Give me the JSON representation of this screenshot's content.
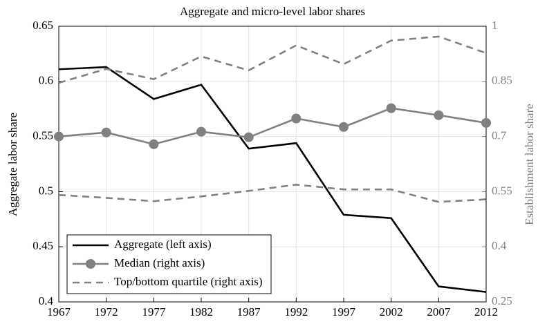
{
  "chart_data": {
    "type": "line",
    "title": "Aggregate and micro-level labor shares",
    "y_label": "Aggregate labor share",
    "y2_label": "Establishment labor share",
    "x": [
      1967,
      1972,
      1977,
      1982,
      1987,
      1992,
      1997,
      2002,
      2007,
      2012
    ],
    "xlim": [
      1967,
      2012
    ],
    "xticks": [
      1967,
      1972,
      1977,
      1982,
      1987,
      1992,
      1997,
      2002,
      2007,
      2012
    ],
    "ylim": [
      0.4,
      0.65
    ],
    "yticks": [
      0.4,
      0.45,
      0.5,
      0.55,
      0.6,
      0.65
    ],
    "y2lim": [
      0.25,
      1
    ],
    "y2ticks": [
      0.25,
      0.4,
      0.55,
      0.7,
      0.85,
      1
    ],
    "grid": true,
    "legend": "lower left",
    "series": [
      {
        "name": "Aggregate (left axis)",
        "color": "#000000",
        "style": "solid",
        "marker": "none",
        "values": [
          0.611,
          0.613,
          0.584,
          0.597,
          0.539,
          0.544,
          0.479,
          0.476,
          0.414,
          0.409
        ]
      },
      {
        "name": "Median (right axis)",
        "color": "#808080",
        "style": "solid",
        "marker": "circle",
        "axis": "y2",
        "values": [
          0.7,
          0.711,
          0.679,
          0.713,
          0.698,
          0.749,
          0.726,
          0.777,
          0.758,
          0.737
        ]
      },
      {
        "name": "Top/bottom quartile (right axis)",
        "color": "#808080",
        "style": "dashed",
        "marker": "none",
        "axis": "y2",
        "values": [
          0.846,
          0.884,
          0.856,
          0.918,
          0.88,
          0.948,
          0.897,
          0.961,
          0.972,
          0.927
        ],
        "bottom_values": [
          0.541,
          0.533,
          0.524,
          0.537,
          0.552,
          0.569,
          0.556,
          0.556,
          0.522,
          0.529
        ]
      }
    ]
  }
}
